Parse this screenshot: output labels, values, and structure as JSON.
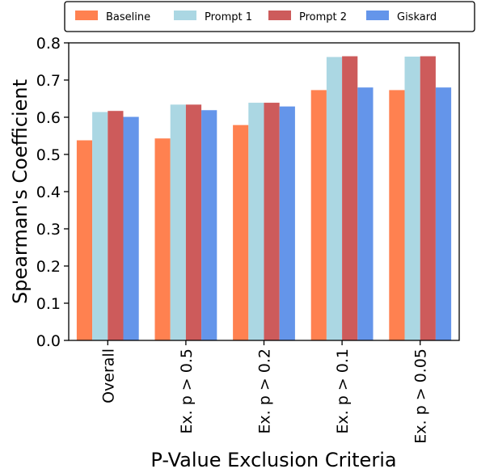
{
  "chart_data": {
    "type": "bar",
    "title": "",
    "xlabel": "P-Value Exclusion Criteria",
    "ylabel": "Spearman's Coefficient",
    "ylim": [
      0.0,
      0.8
    ],
    "yticks": [
      "0.0",
      "0.1",
      "0.2",
      "0.3",
      "0.4",
      "0.5",
      "0.6",
      "0.7",
      "0.8"
    ],
    "categories": [
      "Overall",
      "Ex. p > 0.5",
      "Ex. p > 0.2",
      "Ex. p > 0.1",
      "Ex. p > 0.05"
    ],
    "grid": false,
    "legend_position": "top",
    "series": [
      {
        "name": "Baseline",
        "color": "#ff8150",
        "values": [
          0.538,
          0.543,
          0.579,
          0.673,
          0.673
        ]
      },
      {
        "name": "Prompt 1",
        "color": "#abd7e3",
        "values": [
          0.614,
          0.634,
          0.639,
          0.762,
          0.763
        ]
      },
      {
        "name": "Prompt 2",
        "color": "#cd5b5b",
        "values": [
          0.617,
          0.634,
          0.639,
          0.764,
          0.764
        ]
      },
      {
        "name": "Giskard",
        "color": "#6495ea",
        "values": [
          0.601,
          0.619,
          0.629,
          0.68,
          0.68
        ]
      }
    ]
  }
}
